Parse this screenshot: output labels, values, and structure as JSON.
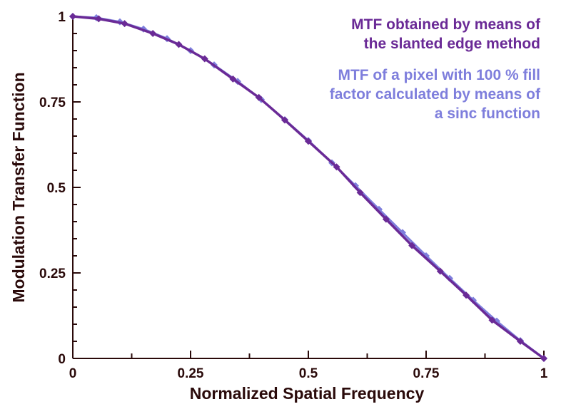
{
  "chart_data": {
    "type": "line",
    "xlabel": "Normalized Spatial Frequency",
    "ylabel": "Modulation Transfer Function",
    "xlim": [
      0,
      1
    ],
    "ylim": [
      0,
      1
    ],
    "x_ticks": [
      "0",
      "0.25",
      "0.5",
      "0.75",
      "1"
    ],
    "y_ticks": [
      "0",
      "0.25",
      "0.5",
      "0.75",
      "1"
    ],
    "grid": false,
    "legend": [
      {
        "lines": [
          "MTF obtained by means of",
          "the slanted edge method"
        ],
        "color": "#6a2a96"
      },
      {
        "lines": [
          "MTF of a pixel with 100 % fill",
          "factor calculated by means of",
          "a sinc function"
        ],
        "color": "#7e7edc"
      }
    ],
    "series": [
      {
        "name": "MTF obtained by means of the slanted edge method",
        "color": "#6a2a96",
        "x": [
          0,
          0.055,
          0.11,
          0.17,
          0.225,
          0.28,
          0.34,
          0.395,
          0.45,
          0.5,
          0.56,
          0.61,
          0.665,
          0.72,
          0.78,
          0.835,
          0.89,
          0.95,
          1.0
        ],
        "y": [
          1.0,
          0.993,
          0.979,
          0.95,
          0.918,
          0.876,
          0.817,
          0.763,
          0.697,
          0.635,
          0.56,
          0.485,
          0.407,
          0.33,
          0.255,
          0.185,
          0.112,
          0.05,
          0.0
        ]
      },
      {
        "name": "MTF of a pixel with 100 % fill factor calculated by means of a sinc function",
        "color": "#7e7edc",
        "x": [
          0,
          0.05,
          0.1,
          0.15,
          0.2,
          0.25,
          0.3,
          0.35,
          0.4,
          0.45,
          0.5,
          0.55,
          0.6,
          0.65,
          0.7,
          0.75,
          0.8,
          0.85,
          0.9,
          0.95,
          1.0
        ],
        "y": [
          1.0,
          0.996,
          0.984,
          0.963,
          0.935,
          0.9,
          0.858,
          0.81,
          0.757,
          0.698,
          0.637,
          0.572,
          0.505,
          0.436,
          0.368,
          0.3,
          0.234,
          0.17,
          0.109,
          0.052,
          0.0
        ]
      }
    ]
  }
}
